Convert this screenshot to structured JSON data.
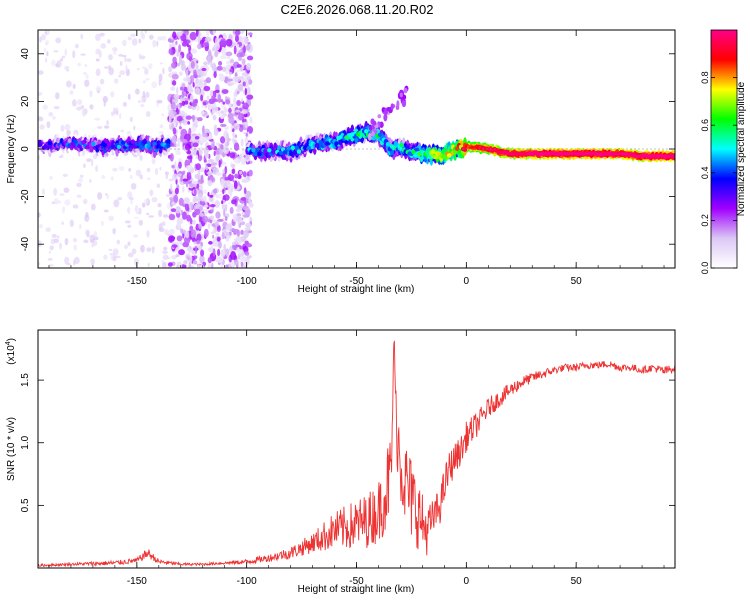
{
  "figure_title": "C2E6.2026.068.11.20.R02",
  "colorbar": {
    "label": "Normalized spectral amplitude",
    "range": [
      0.0,
      1.0
    ],
    "tick_labels": [
      "0.0",
      "0.2",
      "0.4",
      "0.6",
      "0.8"
    ],
    "tick_values": [
      0.0,
      0.2,
      0.4,
      0.6,
      0.8
    ],
    "colors": [
      "#ffffff",
      "#dcc8f5",
      "#a000ff",
      "#0000ff",
      "#00ffff",
      "#00ff00",
      "#ffff00",
      "#ff0000",
      "#ff0088"
    ]
  },
  "chart_data": [
    {
      "type": "heatmap",
      "title": "C2E6.2026.068.11.20.R02",
      "xlabel": "Height of straight line (km)",
      "ylabel": "Frequency (Hz)",
      "xlim": [
        -195,
        95
      ],
      "ylim": [
        -50,
        50
      ],
      "xticks": [
        -150,
        -100,
        -50,
        0,
        50
      ],
      "xtick_labels": [
        "-150",
        "-100",
        "-50",
        "0",
        "50"
      ],
      "yticks": [
        -40,
        -20,
        0,
        20,
        40
      ],
      "ytick_labels": [
        "-40",
        "-20",
        "0",
        "20",
        "40"
      ],
      "ridge": {
        "x": [
          -195,
          -180,
          -165,
          -150,
          -140,
          -135,
          -100,
          -90,
          -80,
          -70,
          -60,
          -50,
          -45,
          -40,
          -38,
          -35,
          -30,
          -25,
          -20,
          -15,
          -10,
          -5,
          0,
          10,
          20,
          30,
          40,
          50,
          60,
          70,
          80,
          90,
          95
        ],
        "y": [
          1,
          2,
          1,
          2,
          1,
          2,
          -1,
          -1,
          -1,
          2,
          3,
          6,
          7,
          6,
          4,
          0,
          1,
          -1,
          -2,
          -2,
          -3,
          0,
          1,
          0,
          -2,
          -2,
          -2,
          -2,
          -2,
          -2,
          -3,
          -3,
          -3
        ],
        "amplitude": [
          0.2,
          0.28,
          0.3,
          0.34,
          0.33,
          0.3,
          0.32,
          0.34,
          0.36,
          0.38,
          0.4,
          0.45,
          0.48,
          0.5,
          0.45,
          0.4,
          0.42,
          0.45,
          0.55,
          0.6,
          0.65,
          0.7,
          0.82,
          0.9,
          0.93,
          0.95,
          0.96,
          0.97,
          0.96,
          0.95,
          0.95,
          0.96,
          0.96
        ]
      },
      "noise_band": {
        "x": [
          -135,
          -98
        ],
        "y": [
          -50,
          50
        ],
        "amplitude": 0.15
      },
      "background_scatter": {
        "x": [
          -195,
          -100
        ],
        "y": [
          -50,
          50
        ],
        "amplitude": 0.05
      }
    },
    {
      "type": "line",
      "xlabel": "Height of straight line (km)",
      "ylabel": "SNR (10 * v/v)",
      "scale_note_base": "(x10",
      "scale_note_exp": "4",
      "scale_note_close": ")",
      "xlim": [
        -195,
        95
      ],
      "ylim": [
        0,
        1.9
      ],
      "xticks": [
        -150,
        -100,
        -50,
        0,
        50
      ],
      "xtick_labels": [
        "-150",
        "-100",
        "-50",
        "0",
        "50"
      ],
      "yticks": [
        0.5,
        1.0,
        1.5
      ],
      "ytick_labels": [
        "0.5",
        "1.0",
        "1.5"
      ],
      "series": [
        {
          "name": "SNR",
          "color": "#ee3333",
          "x": [
            -195,
            -180,
            -160,
            -150,
            -145,
            -140,
            -130,
            -120,
            -110,
            -100,
            -90,
            -80,
            -70,
            -65,
            -60,
            -55,
            -50,
            -45,
            -40,
            -36,
            -34,
            -33,
            -32,
            -30,
            -28,
            -25,
            -22,
            -20,
            -18,
            -15,
            -12,
            -10,
            -8,
            -5,
            -2,
            0,
            5,
            10,
            15,
            20,
            25,
            30,
            35,
            40,
            45,
            50,
            55,
            60,
            65,
            70,
            75,
            80,
            85,
            90,
            95
          ],
          "y": [
            0.02,
            0.03,
            0.04,
            0.06,
            0.12,
            0.05,
            0.03,
            0.03,
            0.04,
            0.05,
            0.08,
            0.12,
            0.2,
            0.25,
            0.3,
            0.32,
            0.35,
            0.38,
            0.45,
            0.65,
            0.8,
            1.85,
            1.2,
            0.85,
            0.7,
            0.55,
            0.45,
            0.35,
            0.3,
            0.4,
            0.5,
            0.65,
            0.78,
            0.88,
            0.95,
            1.05,
            1.15,
            1.28,
            1.35,
            1.42,
            1.48,
            1.52,
            1.55,
            1.58,
            1.6,
            1.6,
            1.62,
            1.62,
            1.63,
            1.6,
            1.6,
            1.58,
            1.6,
            1.57,
            1.6
          ],
          "amplitude_jitter": [
            0.01,
            0.01,
            0.02,
            0.02,
            0.04,
            0.02,
            0.01,
            0.01,
            0.01,
            0.02,
            0.03,
            0.05,
            0.08,
            0.12,
            0.15,
            0.18,
            0.2,
            0.22,
            0.25,
            0.35,
            0.3,
            0.1,
            0.3,
            0.35,
            0.35,
            0.35,
            0.3,
            0.25,
            0.2,
            0.15,
            0.15,
            0.15,
            0.15,
            0.12,
            0.12,
            0.12,
            0.1,
            0.08,
            0.07,
            0.06,
            0.05,
            0.04,
            0.04,
            0.03,
            0.03,
            0.03,
            0.03,
            0.03,
            0.03,
            0.03,
            0.03,
            0.03,
            0.03,
            0.04,
            0.03
          ]
        }
      ]
    }
  ]
}
